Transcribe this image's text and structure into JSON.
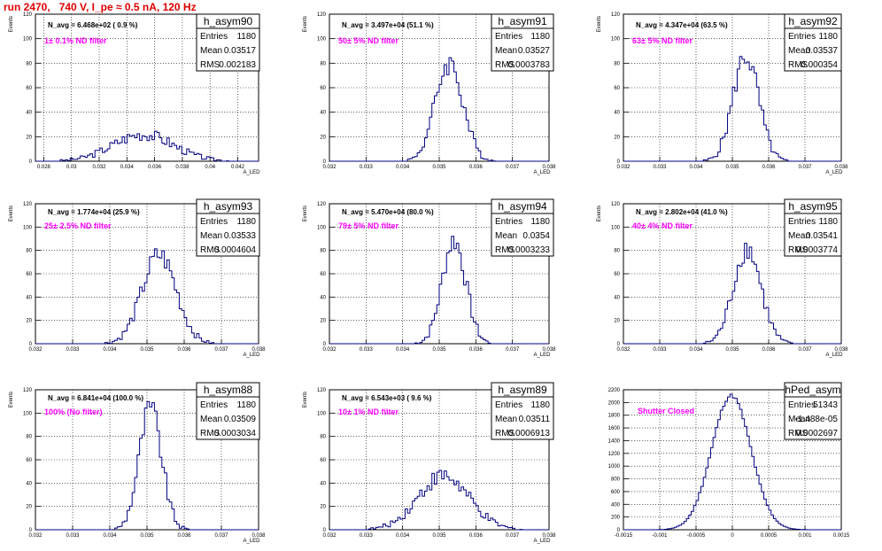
{
  "page": {
    "title": "run 2470,   740 V, I_pe ≈ 0.5 nA, 120 Hz"
  },
  "chart_data": [
    {
      "type": "bar",
      "hist": "h_asym90",
      "nav": "N_avg = 6.468e+02 ( 0.9 %)",
      "filter": "1± 0.1% ND filter",
      "stats": {
        "Entries": "1180",
        "Mean": "0.03517",
        "RMS": "0.002183"
      },
      "ylabel": "Events",
      "xlabel": "A_LED",
      "xlim": [
        0.0274,
        0.0435
      ],
      "ylim": [
        0,
        120
      ],
      "xticks": [
        "0.028",
        "0.03",
        "0.032",
        "0.034",
        "0.036",
        "0.038",
        "0.04",
        "0.042"
      ],
      "yticks": [
        "0",
        "20",
        "40",
        "60",
        "80",
        "100",
        "120"
      ],
      "mean": 0.03517,
      "rms": 0.002183,
      "peak": 22
    },
    {
      "type": "bar",
      "hist": "h_asym91",
      "nav": "N_avg = 3.497e+04 (51.1 %)",
      "filter": "50± 5% ND filter",
      "stats": {
        "Entries": "1180",
        "Mean": "0.03527",
        "RMS": "0.0003783"
      },
      "ylabel": "Events",
      "xlabel": "A_LED",
      "xlim": [
        0.032,
        0.038
      ],
      "ylim": [
        0,
        120
      ],
      "xticks": [
        "0.032",
        "0.033",
        "0.034",
        "0.035",
        "0.036",
        "0.037",
        "0.038"
      ],
      "yticks": [
        "0",
        "20",
        "40",
        "60",
        "80",
        "100",
        "120"
      ],
      "mean": 0.03527,
      "rms": 0.0003783,
      "peak": 80
    },
    {
      "type": "bar",
      "hist": "h_asym92",
      "nav": "N_avg = 4.347e+04 (63.5 %)",
      "filter": "63± 5% ND filter",
      "stats": {
        "Entries": "1180",
        "Mean": "0.03537",
        "RMS": "0.000354"
      },
      "ylabel": "Events",
      "xlabel": "A_LED",
      "xlim": [
        0.032,
        0.038
      ],
      "ylim": [
        0,
        120
      ],
      "xticks": [
        "0.032",
        "0.033",
        "0.034",
        "0.035",
        "0.036",
        "0.037",
        "0.038"
      ],
      "yticks": [
        "0",
        "20",
        "40",
        "60",
        "80",
        "100",
        "120"
      ],
      "mean": 0.03537,
      "rms": 0.000354,
      "peak": 86
    },
    {
      "type": "bar",
      "hist": "h_asym93",
      "nav": "N_avg = 1.774e+04 (25.9 %)",
      "filter": "25± 2.5% ND filter",
      "stats": {
        "Entries": "1180",
        "Mean": "0.03533",
        "RMS": "0.0004604"
      },
      "ylabel": "Events",
      "xlabel": "A_LED",
      "xlim": [
        0.032,
        0.038
      ],
      "ylim": [
        0,
        120
      ],
      "xticks": [
        "0.032",
        "0.033",
        "0.034",
        "0.035",
        "0.036",
        "0.037",
        "0.038"
      ],
      "yticks": [
        "0",
        "20",
        "40",
        "60",
        "80",
        "100",
        "120"
      ],
      "mean": 0.03533,
      "rms": 0.0004604,
      "peak": 76
    },
    {
      "type": "bar",
      "hist": "h_asym94",
      "nav": "N_avg = 5.470e+04 (80.0 %)",
      "filter": "79± 5% ND filter",
      "stats": {
        "Entries": "1180",
        "Mean": "0.0354",
        "RMS": "0.0003233"
      },
      "ylabel": "Events",
      "xlabel": "A_LED",
      "xlim": [
        0.032,
        0.038
      ],
      "ylim": [
        0,
        120
      ],
      "xticks": [
        "0.032",
        "0.033",
        "0.034",
        "0.035",
        "0.036",
        "0.037",
        "0.038"
      ],
      "yticks": [
        "0",
        "20",
        "40",
        "60",
        "80",
        "100",
        "120"
      ],
      "mean": 0.0354,
      "rms": 0.0003233,
      "peak": 89
    },
    {
      "type": "bar",
      "hist": "h_asym95",
      "nav": "N_avg = 2.802e+04 (41.0 %)",
      "filter": "40± 4% ND filter",
      "stats": {
        "Entries": "1180",
        "Mean": "0.03541",
        "RMS": "0.0003774"
      },
      "ylabel": "Events",
      "xlabel": "A_LED",
      "xlim": [
        0.032,
        0.038
      ],
      "ylim": [
        0,
        120
      ],
      "xticks": [
        "0.032",
        "0.033",
        "0.034",
        "0.035",
        "0.036",
        "0.037",
        "0.038"
      ],
      "yticks": [
        "0",
        "20",
        "40",
        "60",
        "80",
        "100",
        "120"
      ],
      "mean": 0.03541,
      "rms": 0.0003774,
      "peak": 82
    },
    {
      "type": "bar",
      "hist": "h_asym88",
      "nav": "N_avg = 6.841e+04 (100.0 %)",
      "filter": "100% (No filter)",
      "stats": {
        "Entries": "1180",
        "Mean": "0.03509",
        "RMS": "0.0003034"
      },
      "ylabel": "Events",
      "xlabel": "A_LED",
      "xlim": [
        0.032,
        0.038
      ],
      "ylim": [
        0,
        120
      ],
      "xticks": [
        "0.032",
        "0.033",
        "0.034",
        "0.035",
        "0.036",
        "0.037",
        "0.038"
      ],
      "yticks": [
        "0",
        "20",
        "40",
        "60",
        "80",
        "100",
        "120"
      ],
      "mean": 0.03509,
      "rms": 0.0003034,
      "peak": 104
    },
    {
      "type": "bar",
      "hist": "h_asym89",
      "nav": "N_avg = 6.543e+03 ( 9.6 %)",
      "filter": "10± 1% ND filter",
      "stats": {
        "Entries": "1180",
        "Mean": "0.03511",
        "RMS": "0.0006913"
      },
      "ylabel": "Events",
      "xlabel": "A_LED",
      "xlim": [
        0.032,
        0.038
      ],
      "ylim": [
        0,
        120
      ],
      "xticks": [
        "0.032",
        "0.033",
        "0.034",
        "0.035",
        "0.036",
        "0.037",
        "0.038"
      ],
      "yticks": [
        "0",
        "20",
        "40",
        "60",
        "80",
        "100",
        "120"
      ],
      "mean": 0.03511,
      "rms": 0.0006913,
      "peak": 46
    },
    {
      "type": "bar",
      "hist": "hPed_asym",
      "nav": "",
      "filter": "Shutter Closed",
      "stats": {
        "Entries": "51343",
        "Mean": "-1.488e-05",
        "RMS": "0.0002697"
      },
      "ylabel": "",
      "xlabel": "",
      "xlim": [
        -0.0015,
        0.0015
      ],
      "ylim": [
        0,
        2200
      ],
      "xticks": [
        "-0.0015",
        "-0.001",
        "-0.0005",
        "0",
        "0.0005",
        "0.001",
        "0.0015"
      ],
      "yticks": [
        "0",
        "200",
        "400",
        "600",
        "800",
        "1000",
        "1200",
        "1400",
        "1600",
        "1800",
        "2000",
        "2200"
      ],
      "mean": -1.488e-05,
      "rms": 0.0002697,
      "peak": 2110
    }
  ]
}
